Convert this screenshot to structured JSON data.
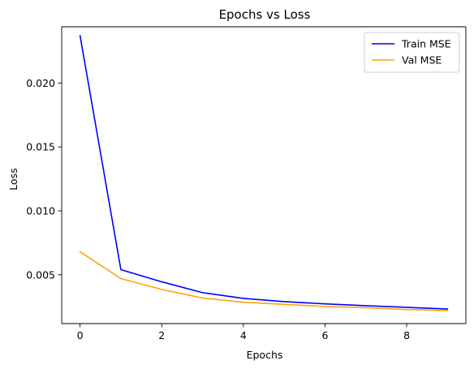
{
  "chart_data": {
    "type": "line",
    "title": "Epochs vs Loss",
    "xlabel": "Epochs",
    "ylabel": "Loss",
    "x": [
      0,
      1,
      2,
      3,
      4,
      5,
      6,
      7,
      8,
      9
    ],
    "xlim": [
      -0.45,
      9.45
    ],
    "ylim": [
      0.00118,
      0.0244
    ],
    "xticks": [
      0,
      2,
      4,
      6,
      8
    ],
    "xtick_labels": [
      "0",
      "2",
      "4",
      "6",
      "8"
    ],
    "yticks": [
      0.005,
      0.01,
      0.015,
      0.02
    ],
    "ytick_labels": [
      "0.005",
      "0.010",
      "0.015",
      "0.020"
    ],
    "grid": false,
    "legend_position": "top-right",
    "series": [
      {
        "name": "Train MSE",
        "color": "#0000ff",
        "values": [
          0.0237,
          0.0054,
          0.00445,
          0.0036,
          0.00315,
          0.0029,
          0.00272,
          0.00258,
          0.00245,
          0.00232
        ]
      },
      {
        "name": "Val MSE",
        "color": "#ffa500",
        "values": [
          0.0068,
          0.0047,
          0.00385,
          0.00318,
          0.00285,
          0.00268,
          0.00252,
          0.00242,
          0.00228,
          0.0022
        ]
      }
    ]
  }
}
